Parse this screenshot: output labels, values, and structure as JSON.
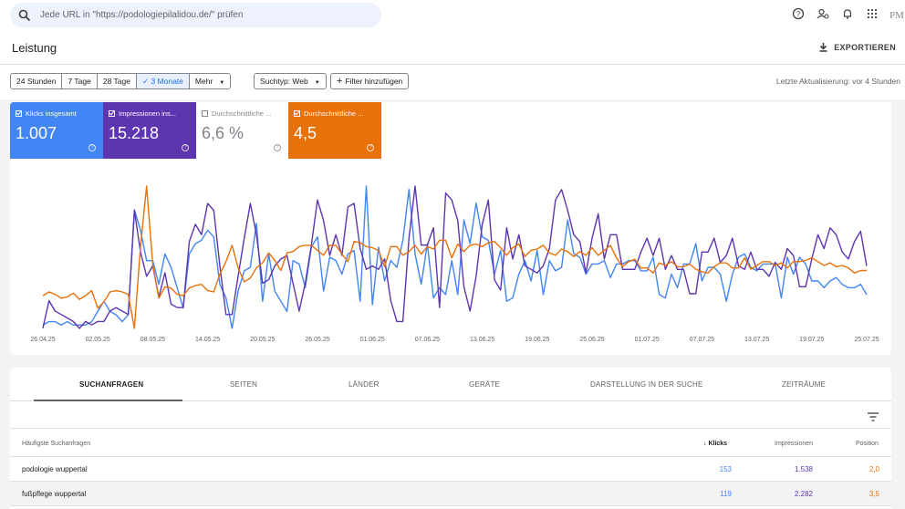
{
  "search": {
    "placeholder": "Jede URL in \"https://podologiepilalidou.de/\" prüfen"
  },
  "topbar": {
    "icons": [
      "help-icon",
      "account-manage-icon",
      "bell-icon",
      "apps-grid-icon",
      "avatar"
    ],
    "avatar_label": "PM"
  },
  "header": {
    "title": "Leistung",
    "export_label": "EXPORTIEREN"
  },
  "filters": {
    "ranges": [
      "24 Stunden",
      "7 Tage",
      "28 Tage",
      "3 Monate",
      "Mehr"
    ],
    "active_range": "3 Monate",
    "search_type": "Suchtyp: Web",
    "add_filter": "Filter hinzufügen",
    "last_update": "Letzte Aktualisierung: vor 4 Stunden"
  },
  "metrics": [
    {
      "label": "Klicks insgesamt",
      "value": "1.007",
      "checked": true,
      "color": "#4285f4"
    },
    {
      "label": "Impressionen ins...",
      "value": "15.218",
      "checked": true,
      "color": "#5e35b1"
    },
    {
      "label": "Durchschnittliche ...",
      "value": "6,6 %",
      "checked": false,
      "color": "#ffffff"
    },
    {
      "label": "Durchschnittliche ...",
      "value": "4,5",
      "checked": true,
      "color": "#e8710a"
    }
  ],
  "chart_data": {
    "type": "line",
    "x_ticks": [
      "26.04.25",
      "02.05.25",
      "08.05.25",
      "14.05.25",
      "20.05.25",
      "26.05.25",
      "01.06.25",
      "07.06.25",
      "13.06.25",
      "19.06.25",
      "25.06.25",
      "01.07.25",
      "07.07.25",
      "13.07.25",
      "19.07.25",
      "25.07.25"
    ],
    "grid": false,
    "legend": "none",
    "series": [
      {
        "name": "Klicks insgesamt",
        "color": "#4285f4",
        "values": [
          2,
          3,
          3,
          2,
          3,
          2,
          2,
          2,
          3,
          6,
          9,
          6,
          5,
          3,
          5,
          36,
          30,
          21,
          21,
          14,
          23,
          19,
          13,
          7,
          23,
          26,
          27,
          30,
          28,
          14,
          10,
          1,
          12,
          18,
          19,
          32,
          9,
          23,
          12,
          9,
          6,
          21,
          20,
          13,
          25,
          28,
          12,
          22,
          21,
          17,
          23,
          24,
          9,
          43,
          8,
          25,
          15,
          21,
          19,
          27,
          42,
          23,
          14,
          26,
          10,
          13,
          11,
          21,
          11,
          33,
          26,
          38,
          28,
          27,
          17,
          24,
          9,
          10,
          17,
          21,
          15,
          24,
          11,
          21,
          18,
          19,
          33,
          23,
          22,
          17,
          20,
          20,
          21,
          16,
          20,
          20,
          21,
          21,
          18,
          18,
          22,
          11,
          10,
          17,
          13,
          20,
          20,
          26,
          15,
          19,
          19,
          17,
          9,
          17,
          22,
          23,
          19,
          18,
          20,
          20,
          20,
          10,
          22,
          17,
          22,
          20,
          15,
          15,
          13,
          15,
          16,
          14,
          13,
          13,
          14,
          11
        ]
      },
      {
        "name": "Impressionen insgesamt",
        "color": "#5e35b1",
        "values": [
          4,
          12,
          9,
          8,
          7,
          6,
          4,
          6,
          5,
          6,
          6,
          9,
          10,
          9,
          8,
          38,
          26,
          19,
          22,
          13,
          20,
          11,
          10,
          10,
          29,
          34,
          31,
          40,
          38,
          22,
          8,
          8,
          19,
          30,
          40,
          31,
          17,
          18,
          22,
          24,
          25,
          17,
          9,
          17,
          28,
          41,
          35,
          25,
          31,
          25,
          39,
          40,
          27,
          21,
          22,
          21,
          24,
          12,
          6,
          6,
          30,
          45,
          28,
          28,
          33,
          10,
          43,
          41,
          35,
          16,
          9,
          19,
          34,
          41,
          18,
          15,
          33,
          24,
          31,
          22,
          21,
          20,
          22,
          27,
          41,
          44,
          38,
          31,
          29,
          20,
          30,
          37,
          24,
          31,
          31,
          21,
          21,
          21,
          26,
          30,
          25,
          30,
          21,
          25,
          21,
          21,
          14,
          14,
          26,
          26,
          30,
          23,
          25,
          30,
          22,
          21,
          26,
          21,
          21,
          19,
          23,
          21,
          27,
          25,
          16,
          16,
          24,
          31,
          27,
          33,
          31,
          26,
          24,
          29,
          32,
          22
        ]
      },
      {
        "name": "Durchschnittliche Position",
        "color": "#e8710a",
        "values": [
          12.6,
          12.3,
          12.5,
          12.8,
          12.7,
          12.4,
          12.9,
          12.6,
          12.2,
          13.6,
          13.1,
          12.3,
          12.2,
          12.3,
          12.5,
          15.2,
          8.7,
          3.9,
          10.1,
          12.8,
          11.9,
          12.0,
          12.5,
          12.6,
          12.0,
          11.8,
          11.7,
          12.2,
          12.3,
          10.9,
          9.9,
          8.6,
          10.4,
          11.5,
          11.2,
          10.4,
          10.0,
          9.2,
          9.8,
          10.6,
          9.2,
          9.1,
          8.7,
          8.6,
          8.6,
          9.0,
          9.4,
          8.6,
          8.6,
          9.3,
          9.9,
          8.3,
          8.4,
          8.7,
          8.8,
          9.0,
          10.3,
          8.7,
          8.7,
          9.4,
          9.1,
          8.6,
          9.3,
          8.7,
          8.9,
          8.2,
          8.2,
          9.6,
          8.5,
          9.1,
          8.6,
          8.5,
          8.7,
          8.4,
          8.3,
          8.8,
          9.4,
          8.8,
          8.5,
          9.5,
          9.0,
          8.9,
          8.6,
          9.2,
          9.4,
          8.9,
          9.1,
          9.5,
          9.1,
          9.4,
          8.8,
          9.4,
          9.0,
          8.6,
          9.6,
          10.3,
          9.9,
          9.7,
          10.4,
          10.4,
          10.8,
          10.0,
          10.2,
          9.9,
          10.3,
          10.3,
          10.1,
          10.5,
          10.7,
          10.8,
          10.3,
          10.0,
          10.0,
          10.4,
          10.4,
          9.6,
          10.5,
          10.2,
          9.9,
          9.9,
          10.2,
          10.0,
          10.4,
          9.9,
          9.9,
          9.8,
          9.6,
          9.9,
          10.2,
          10.0,
          10.3,
          10.2,
          10.4,
          10.8,
          10.6,
          10.6
        ]
      }
    ]
  },
  "tabs": [
    "SUCHANFRAGEN",
    "SEITEN",
    "LÄNDER",
    "GERÄTE",
    "DARSTELLUNG IN DER SUCHE",
    "ZEITRÄUME"
  ],
  "table": {
    "headers": {
      "query": "Häufigste Suchanfragen",
      "clicks": "Klicks",
      "impressions": "Impressionen",
      "position": "Position"
    },
    "rows": [
      {
        "query": "podologie wuppertal",
        "clicks": "153",
        "impressions": "1.538",
        "position": "2,0"
      },
      {
        "query": "fußpflege wuppertal",
        "clicks": "119",
        "impressions": "2.282",
        "position": "3,5"
      }
    ]
  }
}
